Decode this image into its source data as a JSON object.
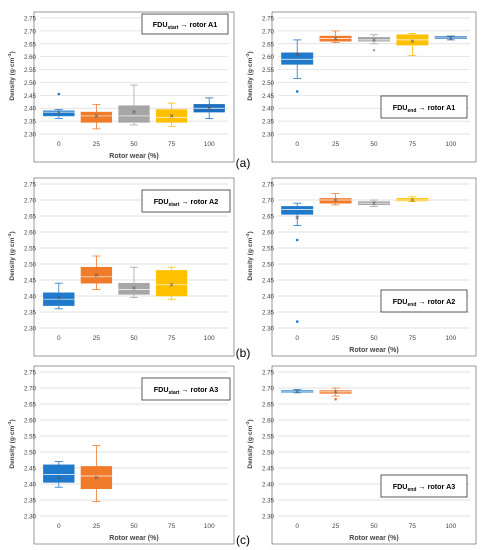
{
  "colors": {
    "c0": "#1f7acb",
    "c25": "#f07b2a",
    "c50": "#a6a6a6",
    "c75": "#ffc000",
    "c100": "#1f6fbf",
    "grid": "#d9d9d9",
    "axis_text": "#444444",
    "frame": "#555555"
  },
  "panel_labels": [
    "(a)",
    "(b)",
    "(c)"
  ],
  "chart_data": [
    {
      "type": "box",
      "legend_main": "FDU",
      "legend_sub": "start",
      "legend_rest": " → rotor A1",
      "ylabel_main": "Density (g·cm",
      "ylabel_sup": "-3",
      "ylabel_end": ")",
      "xlabel": "Rotor wear  (%)",
      "categories": [
        "0",
        "25",
        "50",
        "75",
        "100"
      ],
      "ylim": [
        2.3,
        2.75
      ],
      "yticks": [
        "2.30",
        "2.35",
        "2.40",
        "2.45",
        "2.50",
        "2.55",
        "2.60",
        "2.65",
        "2.70",
        "2.75"
      ],
      "boxes": [
        {
          "cat": "0",
          "color": "c0",
          "min": 2.36,
          "q1": 2.37,
          "median": 2.385,
          "q3": 2.39,
          "max": 2.395,
          "mean": 2.382,
          "outliers": [
            2.455
          ]
        },
        {
          "cat": "25",
          "color": "c25",
          "min": 2.32,
          "q1": 2.345,
          "median": 2.37,
          "q3": 2.385,
          "max": 2.415,
          "mean": 2.37,
          "outliers": []
        },
        {
          "cat": "50",
          "color": "c50",
          "min": 2.335,
          "q1": 2.345,
          "median": 2.37,
          "q3": 2.41,
          "max": 2.49,
          "mean": 2.385,
          "outliers": []
        },
        {
          "cat": "75",
          "color": "c75",
          "min": 2.33,
          "q1": 2.345,
          "median": 2.365,
          "q3": 2.395,
          "max": 2.42,
          "mean": 2.37,
          "outliers": []
        },
        {
          "cat": "100",
          "color": "c100",
          "min": 2.36,
          "q1": 2.385,
          "median": 2.4,
          "q3": 2.415,
          "max": 2.44,
          "mean": 2.4,
          "outliers": []
        }
      ]
    },
    {
      "type": "box",
      "legend_main": "FDU",
      "legend_sub": "end",
      "legend_rest": " → rotor A1",
      "ylabel_main": "Density (g·cm",
      "ylabel_sup": "-3",
      "ylabel_end": ")",
      "xlabel": "",
      "categories": [
        "0",
        "25",
        "50",
        "75",
        "100"
      ],
      "ylim": [
        2.3,
        2.75
      ],
      "yticks": [
        "2.30",
        "2.35",
        "2.40",
        "2.45",
        "2.50",
        "2.55",
        "2.60",
        "2.65",
        "2.70",
        "2.75"
      ],
      "boxes": [
        {
          "cat": "0",
          "color": "c0",
          "min": 2.515,
          "q1": 2.57,
          "median": 2.59,
          "q3": 2.615,
          "max": 2.665,
          "mean": 2.61,
          "outliers": [
            2.465
          ]
        },
        {
          "cat": "25",
          "color": "c25",
          "min": 2.655,
          "q1": 2.66,
          "median": 2.67,
          "q3": 2.68,
          "max": 2.7,
          "mean": 2.67,
          "outliers": []
        },
        {
          "cat": "50",
          "color": "c50",
          "min": 2.65,
          "q1": 2.66,
          "median": 2.665,
          "q3": 2.675,
          "max": 2.685,
          "mean": 2.665,
          "outliers": [
            2.625
          ]
        },
        {
          "cat": "75",
          "color": "c75",
          "min": 2.605,
          "q1": 2.645,
          "median": 2.665,
          "q3": 2.685,
          "max": 2.69,
          "mean": 2.66,
          "outliers": []
        },
        {
          "cat": "100",
          "color": "c100",
          "min": 2.665,
          "q1": 2.67,
          "median": 2.673,
          "q3": 2.678,
          "max": 2.68,
          "mean": 2.672,
          "outliers": []
        }
      ]
    },
    {
      "type": "box",
      "legend_main": "FDU",
      "legend_sub": "start",
      "legend_rest": " → rotor A2",
      "ylabel_main": "Density (g·cm",
      "ylabel_sup": "-3",
      "ylabel_end": ")",
      "xlabel": "",
      "categories": [
        "0",
        "25",
        "50",
        "75",
        "100"
      ],
      "ylim": [
        2.3,
        2.75
      ],
      "yticks": [
        "2.30",
        "2.35",
        "2.40",
        "2.45",
        "2.50",
        "2.55",
        "2.60",
        "2.65",
        "2.70",
        "2.75"
      ],
      "boxes": [
        {
          "cat": "0",
          "color": "c0",
          "min": 2.36,
          "q1": 2.37,
          "median": 2.39,
          "q3": 2.41,
          "max": 2.44,
          "mean": 2.395,
          "outliers": []
        },
        {
          "cat": "25",
          "color": "c25",
          "min": 2.42,
          "q1": 2.44,
          "median": 2.46,
          "q3": 2.49,
          "max": 2.525,
          "mean": 2.465,
          "outliers": []
        },
        {
          "cat": "50",
          "color": "c50",
          "min": 2.395,
          "q1": 2.405,
          "median": 2.42,
          "q3": 2.44,
          "max": 2.49,
          "mean": 2.425,
          "outliers": []
        },
        {
          "cat": "75",
          "color": "c75",
          "min": 2.39,
          "q1": 2.4,
          "median": 2.435,
          "q3": 2.48,
          "max": 2.49,
          "mean": 2.435,
          "outliers": []
        }
      ]
    },
    {
      "type": "box",
      "legend_main": "FDU",
      "legend_sub": "end",
      "legend_rest": " → rotor A2",
      "ylabel_main": "Density (g·cm",
      "ylabel_sup": "-3",
      "ylabel_end": ")",
      "xlabel": "Rotor wear  (%)",
      "categories": [
        "0",
        "25",
        "50",
        "75",
        "100"
      ],
      "ylim": [
        2.3,
        2.75
      ],
      "yticks": [
        "2.30",
        "2.35",
        "2.40",
        "2.45",
        "2.50",
        "2.55",
        "2.60",
        "2.65",
        "2.70",
        "2.75"
      ],
      "boxes": [
        {
          "cat": "0",
          "color": "c0",
          "min": 2.62,
          "q1": 2.655,
          "median": 2.67,
          "q3": 2.68,
          "max": 2.69,
          "mean": 2.645,
          "outliers": [
            2.575,
            2.32
          ]
        },
        {
          "cat": "25",
          "color": "c25",
          "min": 2.685,
          "q1": 2.69,
          "median": 2.7,
          "q3": 2.705,
          "max": 2.72,
          "mean": 2.7,
          "outliers": []
        },
        {
          "cat": "50",
          "color": "c50",
          "min": 2.68,
          "q1": 2.685,
          "median": 2.69,
          "q3": 2.695,
          "max": 2.7,
          "mean": 2.69,
          "outliers": []
        },
        {
          "cat": "75",
          "color": "c75",
          "min": 2.695,
          "q1": 2.697,
          "median": 2.7,
          "q3": 2.705,
          "max": 2.71,
          "mean": 2.7,
          "outliers": []
        }
      ]
    },
    {
      "type": "box",
      "legend_main": "FDU",
      "legend_sub": "start",
      "legend_rest": " → rotor A3",
      "ylabel_main": "Density (g·cm",
      "ylabel_sup": "-3",
      "ylabel_end": ")",
      "xlabel": "Rotor wear  (%)",
      "categories": [
        "0",
        "25",
        "50",
        "75",
        "100"
      ],
      "ylim": [
        2.3,
        2.75
      ],
      "yticks": [
        "2.30",
        "2.35",
        "2.40",
        "2.45",
        "2.50",
        "2.55",
        "2.60",
        "2.65",
        "2.70",
        "2.75"
      ],
      "boxes": [
        {
          "cat": "0",
          "color": "c0",
          "min": 2.39,
          "q1": 2.405,
          "median": 2.43,
          "q3": 2.46,
          "max": 2.47,
          "mean": 2.42,
          "outliers": []
        },
        {
          "cat": "25",
          "color": "c25",
          "min": 2.345,
          "q1": 2.385,
          "median": 2.425,
          "q3": 2.455,
          "max": 2.52,
          "mean": 2.42,
          "outliers": []
        }
      ]
    },
    {
      "type": "box",
      "legend_main": "FDU",
      "legend_sub": "end",
      "legend_rest": " → rotor A3",
      "ylabel_main": "Density (g·cm",
      "ylabel_sup": "-3",
      "ylabel_end": ")",
      "xlabel": "Rotor wear  (%)",
      "categories": [
        "0",
        "25",
        "50",
        "75",
        "100"
      ],
      "ylim": [
        2.3,
        2.75
      ],
      "yticks": [
        "2.30",
        "2.35",
        "2.40",
        "2.45",
        "2.50",
        "2.55",
        "2.60",
        "2.65",
        "2.70",
        "2.75"
      ],
      "boxes": [
        {
          "cat": "0",
          "color": "c0",
          "min": 2.685,
          "q1": 2.686,
          "median": 2.688,
          "q3": 2.692,
          "max": 2.695,
          "mean": 2.689,
          "outliers": []
        },
        {
          "cat": "25",
          "color": "c25",
          "min": 2.675,
          "q1": 2.683,
          "median": 2.688,
          "q3": 2.692,
          "max": 2.7,
          "mean": 2.688,
          "outliers": [
            2.665
          ]
        }
      ]
    }
  ]
}
